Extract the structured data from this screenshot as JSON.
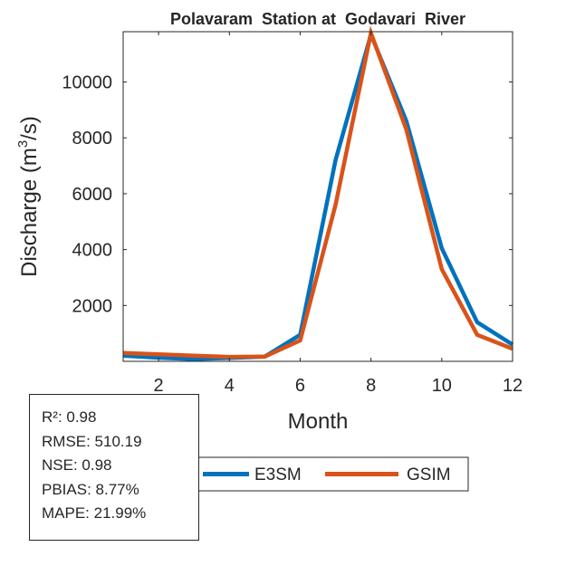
{
  "chart_data": {
    "type": "line",
    "title": "Polavaram  Station at  Godavari  River",
    "xlabel": "Month",
    "ylabel": "Discharge (m",
    "ylabel_sup": "3",
    "ylabel_end": "/s)",
    "xlim": [
      1,
      12
    ],
    "ylim": [
      0,
      11800
    ],
    "xticks": [
      2,
      4,
      6,
      8,
      10,
      12
    ],
    "yticks": [
      2000,
      4000,
      6000,
      8000,
      10000
    ],
    "x": [
      1,
      2,
      3,
      4,
      5,
      6,
      7,
      8,
      9,
      10,
      11,
      12
    ],
    "series": [
      {
        "name": "E3SM",
        "color": "#0072BD",
        "values": [
          200,
          130,
          80,
          120,
          170,
          950,
          7200,
          11700,
          8600,
          4050,
          1400,
          600
        ]
      },
      {
        "name": "GSIM",
        "color": "#D95319",
        "values": [
          300,
          250,
          200,
          160,
          170,
          750,
          5600,
          11750,
          8300,
          3300,
          950,
          450
        ]
      }
    ],
    "grid": false,
    "legend_position": "bottom"
  },
  "stats": {
    "r2": "R²: 0.98",
    "rmse": "RMSE: 510.19",
    "nse": "NSE: 0.98",
    "pbias": "PBIAS: 8.77%",
    "mape": "MAPE: 21.99%"
  }
}
